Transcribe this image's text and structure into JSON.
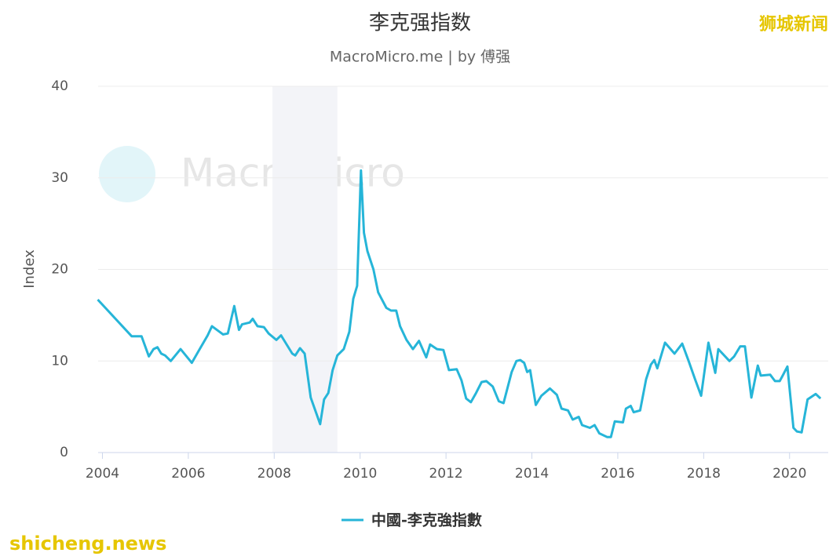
{
  "chart_data": {
    "type": "line",
    "title": "李克强指数",
    "subtitle": "MacroMicro.me | by 傅强",
    "y_label": "Index",
    "watermarks": [
      "MacroMicro",
      "狮城新闻",
      "shicheng.news"
    ],
    "shaded_range": [
      2007.96,
      2009.47
    ],
    "xlim": [
      2003.9,
      2020.9
    ],
    "xticks": [
      2004,
      2006,
      2008,
      2010,
      2012,
      2014,
      2016,
      2018,
      2020
    ],
    "ylim": [
      0,
      40
    ],
    "yticks": [
      0,
      10,
      20,
      30,
      40
    ],
    "grid": true,
    "x": [
      2003.89,
      2004.68,
      2004.91,
      2005.08,
      2005.19,
      2005.28,
      2005.37,
      2005.46,
      2005.59,
      2005.82,
      2006.08,
      2006.45,
      2006.55,
      2006.81,
      2006.92,
      2007.07,
      2007.18,
      2007.25,
      2007.43,
      2007.5,
      2007.61,
      2007.76,
      2007.87,
      2008.05,
      2008.16,
      2008.42,
      2008.49,
      2008.6,
      2008.71,
      2008.85,
      2009.07,
      2009.16,
      2009.26,
      2009.36,
      2009.47,
      2009.62,
      2009.75,
      2009.84,
      2009.93,
      2010.02,
      2010.09,
      2010.17,
      2010.31,
      2010.42,
      2010.61,
      2010.72,
      2010.84,
      2010.93,
      2011.08,
      2011.23,
      2011.37,
      2011.54,
      2011.63,
      2011.79,
      2011.94,
      2012.07,
      2012.25,
      2012.36,
      2012.47,
      2012.58,
      2012.7,
      2012.83,
      2012.94,
      2013.09,
      2013.23,
      2013.34,
      2013.53,
      2013.64,
      2013.73,
      2013.82,
      2013.89,
      2013.96,
      2014.09,
      2014.22,
      2014.42,
      2014.58,
      2014.69,
      2014.84,
      2014.95,
      2015.09,
      2015.17,
      2015.35,
      2015.46,
      2015.57,
      2015.75,
      2015.84,
      2015.93,
      2016.12,
      2016.19,
      2016.3,
      2016.37,
      2016.52,
      2016.66,
      2016.77,
      2016.85,
      2016.92,
      2017.1,
      2017.32,
      2017.5,
      2017.65,
      2017.8,
      2017.94,
      2018.11,
      2018.27,
      2018.34,
      2018.6,
      2018.71,
      2018.85,
      2018.96,
      2019.11,
      2019.26,
      2019.33,
      2019.55,
      2019.66,
      2019.77,
      2019.84,
      2019.95,
      2020.09,
      2020.17,
      2020.28,
      2020.42,
      2020.61,
      2020.72
    ],
    "series": [
      {
        "name": "中國-李克強指數",
        "color": "#26b5d8",
        "values": [
          16.7,
          12.7,
          12.7,
          10.5,
          11.3,
          11.5,
          10.8,
          10.6,
          10.0,
          11.3,
          9.8,
          12.8,
          13.8,
          12.9,
          13.0,
          16.0,
          13.4,
          14.0,
          14.2,
          14.6,
          13.8,
          13.7,
          13.0,
          12.3,
          12.8,
          10.8,
          10.6,
          11.4,
          10.8,
          6.0,
          3.1,
          5.8,
          6.5,
          9.0,
          10.6,
          11.3,
          13.2,
          16.8,
          18.2,
          30.8,
          24.0,
          22.0,
          20.0,
          17.5,
          15.8,
          15.5,
          15.5,
          13.8,
          12.3,
          11.3,
          12.2,
          10.4,
          11.8,
          11.3,
          11.2,
          9.0,
          9.1,
          7.9,
          5.9,
          5.5,
          6.5,
          7.7,
          7.8,
          7.2,
          5.6,
          5.4,
          8.8,
          10.0,
          10.1,
          9.8,
          8.8,
          9.0,
          5.2,
          6.2,
          7.0,
          6.3,
          4.8,
          4.6,
          3.6,
          3.9,
          3.0,
          2.7,
          3.0,
          2.1,
          1.7,
          1.7,
          3.4,
          3.3,
          4.8,
          5.1,
          4.4,
          4.6,
          8.0,
          9.6,
          10.1,
          9.2,
          12.0,
          10.8,
          11.9,
          10.0,
          8.0,
          6.2,
          12.0,
          8.7,
          11.3,
          10.0,
          10.5,
          11.6,
          11.6,
          6.0,
          9.5,
          8.4,
          8.5,
          7.8,
          7.8,
          8.4,
          9.4,
          2.7,
          2.3,
          2.2,
          5.8,
          6.4,
          5.9
        ]
      }
    ]
  }
}
